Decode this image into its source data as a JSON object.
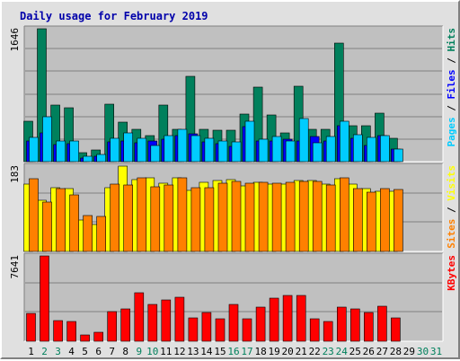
{
  "chart_data": {
    "type": "bar",
    "title": "Daily usage for February 2019",
    "days": [
      "1",
      "2",
      "3",
      "4",
      "5",
      "6",
      "7",
      "8",
      "9",
      "10",
      "11",
      "12",
      "13",
      "14",
      "15",
      "16",
      "17",
      "18",
      "19",
      "20",
      "21",
      "22",
      "23",
      "24",
      "25",
      "26",
      "27",
      "28",
      "29",
      "30",
      "31"
    ],
    "weekend_days": [
      "2",
      "3",
      "9",
      "10",
      "16",
      "17",
      "23",
      "24",
      "30",
      "31"
    ],
    "colors": {
      "title": "#0000aa",
      "hits": "#00805c",
      "files": "#0000ff",
      "pages": "#00ccff",
      "visits": "#ffff00",
      "sites": "#ff8000",
      "kbytes": "#ff0000",
      "weekday_label": "#000000",
      "weekend_label": "#00805c",
      "plot_bg": "#c0c0c0",
      "frame_bg": "#e0e0e0"
    },
    "panels": [
      {
        "id": "hits-files-pages",
        "max_label": "1646",
        "ymax": 1646,
        "right_label": [
          {
            "text": "Pages",
            "color": "#00ccff"
          },
          {
            "text": " / ",
            "color": "#000000"
          },
          {
            "text": "Files",
            "color": "#0000ff"
          },
          {
            "text": " / ",
            "color": "#000000"
          },
          {
            "text": "Hits",
            "color": "#00805c"
          }
        ],
        "series": [
          {
            "name": "Hits",
            "color": "#00805c",
            "values": [
              503,
              1646,
              699,
              663,
              112,
              146,
              712,
              484,
              397,
              317,
              699,
              404,
              1051,
              399,
              393,
              388,
              592,
              922,
              578,
              355,
              929,
              395,
              396,
              1470,
              444,
              450,
              601,
              293,
              0,
              0,
              0
            ]
          },
          {
            "name": "Files",
            "color": "#0000ff",
            "values": [
              254,
              360,
              208,
              224,
              50,
              67,
              240,
              254,
              230,
              261,
              273,
              324,
              344,
              241,
              225,
              186,
              434,
              255,
              261,
              281,
              259,
              315,
              255,
              445,
              294,
              205,
              326,
              160,
              0,
              0,
              0
            ]
          },
          {
            "name": "Pages",
            "color": "#00ccff",
            "values": [
              304,
              551,
              254,
              253,
              70,
              94,
              288,
              353,
              289,
              197,
              321,
              398,
              324,
              284,
              253,
              247,
              498,
              281,
              307,
              257,
              535,
              231,
              307,
              506,
              330,
              297,
              317,
              160,
              0,
              0,
              0
            ]
          }
        ]
      },
      {
        "id": "visits-sites",
        "max_label": "183",
        "ymax": 183,
        "right_label": [
          {
            "text": "Sites",
            "color": "#ff8000"
          },
          {
            "text": " / ",
            "color": "#000000"
          },
          {
            "text": "Visits",
            "color": "#ffff00"
          }
        ],
        "series": [
          {
            "name": "Visits",
            "color": "#ffff00",
            "values": [
              145,
              110,
              136,
              134,
              68,
              58,
              137,
              183,
              155,
              158,
              146,
              157,
              131,
              148,
              153,
              155,
              141,
              148,
              144,
              145,
              153,
              153,
              145,
              156,
              145,
              135,
              129,
              129,
              0,
              0,
              0
            ]
          },
          {
            "name": "Sites",
            "color": "#ff8000",
            "values": [
              156,
              106,
              134,
              121,
              77,
              76,
              145,
              142,
              158,
              139,
              142,
              157,
              136,
              137,
              146,
              150,
              146,
              149,
              146,
              149,
              150,
              150,
              142,
              157,
              135,
              128,
              135,
              133,
              0,
              0,
              0
            ]
          }
        ]
      },
      {
        "id": "kbytes",
        "max_label": "7641",
        "ymax": 7641,
        "right_label": [
          {
            "text": "KBytes",
            "color": "#ff0000"
          }
        ],
        "series": [
          {
            "name": "KBytes",
            "color": "#ff0000",
            "values": [
              2520,
              7641,
              1868,
              1794,
              574,
              781,
              2644,
              2860,
              4348,
              3329,
              3691,
              3933,
              2059,
              2600,
              1985,
              3329,
              1985,
              3078,
              3867,
              4119,
              4119,
              1985,
              1794,
              3078,
              2914,
              2539,
              3170,
              2059,
              0,
              0,
              0
            ]
          }
        ]
      }
    ]
  }
}
